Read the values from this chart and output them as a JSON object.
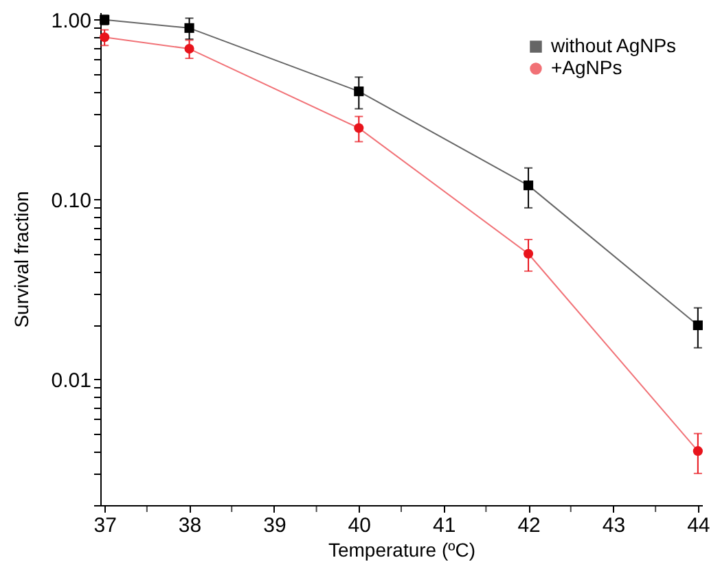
{
  "chart_data": {
    "type": "line",
    "xlabel": "Temperature (ºC)",
    "ylabel": "Survival fraction",
    "log": "y",
    "grid": false,
    "legend": "top right",
    "line_style": "solid",
    "xlim": [
      36.95,
      44.05
    ],
    "xticks": [
      37,
      {
        "value": 37.5,
        "label": null
      },
      38,
      {
        "value": 38.5,
        "label": null
      },
      39,
      {
        "value": 39.5,
        "label": null
      },
      40,
      {
        "value": 40.5,
        "label": null
      },
      41,
      {
        "value": 41.5,
        "label": null
      },
      42,
      {
        "value": 42.5,
        "label": null
      },
      43,
      {
        "value": 43.5,
        "label": null
      },
      44
    ],
    "ylim": [
      0.002,
      1.1
    ],
    "yticks": [
      {
        "value": 0.002,
        "label": null
      },
      {
        "value": 0.003,
        "label": null
      },
      {
        "value": 0.004,
        "label": null
      },
      {
        "value": 0.005,
        "label": null
      },
      {
        "value": 0.006,
        "label": null
      },
      {
        "value": 0.007,
        "label": null
      },
      {
        "value": 0.008,
        "label": null
      },
      {
        "value": 0.009,
        "label": null
      },
      0.01,
      {
        "value": 0.02,
        "label": null
      },
      {
        "value": 0.03,
        "label": null
      },
      {
        "value": 0.04,
        "label": null
      },
      {
        "value": 0.05,
        "label": null
      },
      {
        "value": 0.06,
        "label": null
      },
      {
        "value": 0.07,
        "label": null
      },
      {
        "value": 0.08,
        "label": null
      },
      {
        "value": 0.09,
        "label": null
      },
      {
        "value": 0.1,
        "label": "0.10"
      },
      {
        "value": 0.2,
        "label": null
      },
      {
        "value": 0.3,
        "label": null
      },
      {
        "value": 0.4,
        "label": null
      },
      {
        "value": 0.5,
        "label": null
      },
      {
        "value": 0.6,
        "label": null
      },
      {
        "value": 0.7,
        "label": null
      },
      {
        "value": 0.8,
        "label": null
      },
      {
        "value": 0.9,
        "label": null
      },
      {
        "value": 1,
        "label": "1.00"
      }
    ],
    "x": [
      37,
      38,
      40,
      42,
      44
    ],
    "series": [
      {
        "name": "without AgNPs",
        "color": "#000000",
        "marker": "square",
        "values": [
          1.0,
          0.9,
          0.4,
          0.12,
          0.02
        ],
        "errors": [
          0.06,
          0.12,
          0.08,
          0.03,
          0.005
        ]
      },
      {
        "name": "+AgNPs",
        "color": "#e8141c",
        "marker": "circle",
        "values": [
          0.8,
          0.69,
          0.25,
          0.05,
          0.004
        ],
        "errors": [
          0.08,
          0.08,
          0.04,
          0.01,
          0.001
        ]
      }
    ]
  }
}
